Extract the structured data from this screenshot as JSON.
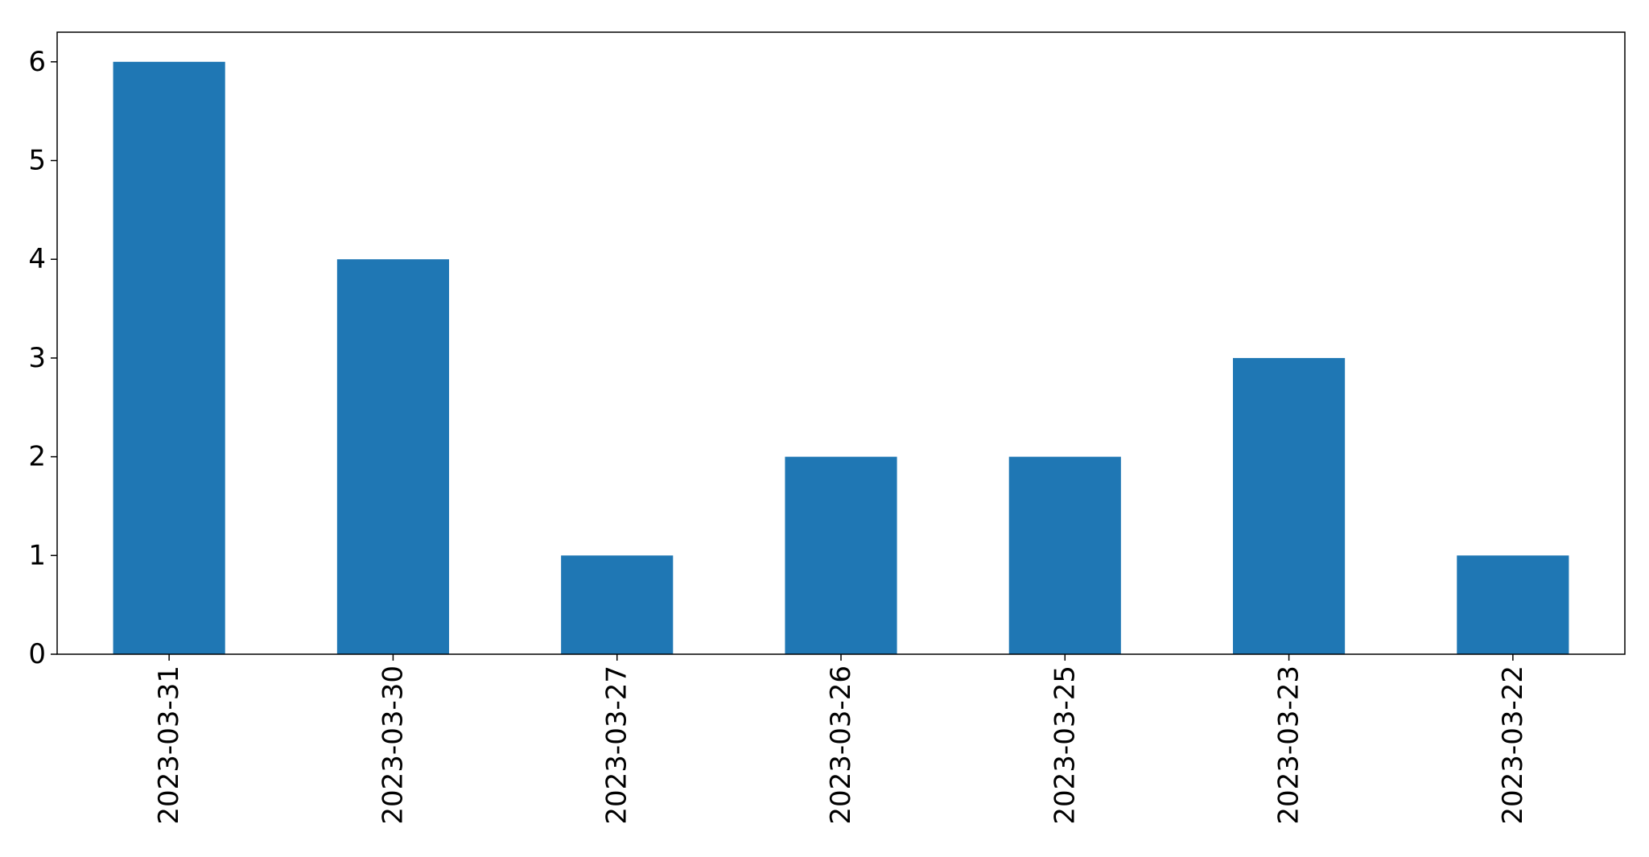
{
  "chart_data": {
    "type": "bar",
    "categories": [
      "2023-03-31",
      "2023-03-30",
      "2023-03-27",
      "2023-03-26",
      "2023-03-25",
      "2023-03-23",
      "2023-03-22"
    ],
    "values": [
      6,
      4,
      1,
      2,
      2,
      3,
      1
    ],
    "ylim": [
      0,
      6.3
    ],
    "yticks": [
      0,
      1,
      2,
      3,
      4,
      5,
      6
    ],
    "ytick_labels": [
      "0",
      "1",
      "2",
      "3",
      "4",
      "5",
      "6"
    ],
    "xlabel": "",
    "ylabel": "",
    "title": "",
    "grid": false,
    "legend": "none",
    "bar_color": "#1f77b4",
    "xtick_rotation": "vertical"
  }
}
